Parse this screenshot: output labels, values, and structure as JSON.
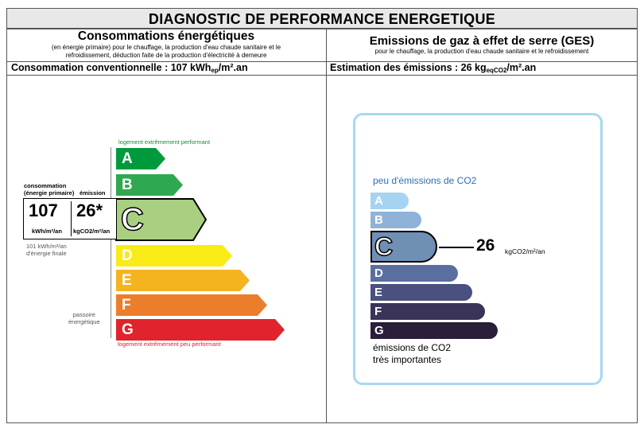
{
  "title": "DIAGNOSTIC DE PERFORMANCE ENERGETIQUE",
  "energy": {
    "heading": "Consommations énergétiques",
    "subheading_line1": "(en énergie primaire) pour le chauffage, la production d'eau chaude sanitaire et le",
    "subheading_line2": "refroidissement, déduction faite de la production d'électricité à demeure",
    "summary_label": "Consommation conventionnelle : 107 kWh",
    "summary_sub": "ep",
    "summary_unit": "/m².an",
    "top_note": "logement extrêmement performant",
    "bottom_note": "logement extrêmement peu performant",
    "side_label1": "consommation",
    "side_label2": "(énergie primaire)",
    "side_label3": "émission",
    "value_primary": "107",
    "value_emission": "26*",
    "unit_primary": "kWh/m²/an",
    "unit_emission": "kgCO2/m²/an",
    "final_note1": "101 kWh/m²/an",
    "final_note2": "d'énergie finale",
    "passoire1": "passoire",
    "passoire2": "énergétique",
    "classes": [
      "A",
      "B",
      "C",
      "D",
      "E",
      "F",
      "G"
    ],
    "colors": [
      "#009a3d",
      "#2fa84f",
      "#a8d080",
      "#f8eb16",
      "#f4b41f",
      "#ec7e2b",
      "#e0232c"
    ],
    "current_class": "C"
  },
  "ges": {
    "heading": "Emissions de gaz à effet de serre (GES)",
    "subheading": "pour le chauffage, la production d'eau chaude sanitaire et le refroidissement",
    "summary_label": "Estimation des émissions : 26 kg",
    "summary_sub": "eqCO2",
    "summary_unit": "/m².an",
    "top_note": "peu d'émissions de CO2",
    "bottom_note1": "émissions de CO2",
    "bottom_note2": "très importantes",
    "classes": [
      "A",
      "B",
      "C",
      "D",
      "E",
      "F",
      "G"
    ],
    "colors": [
      "#a6d3f2",
      "#8fb3d8",
      "#6f8fb4",
      "#5a6fa0",
      "#4a5080",
      "#3a3458",
      "#2a1e3a"
    ],
    "current_class": "C",
    "value": "26",
    "unit": "kgCO2/m²/an"
  }
}
